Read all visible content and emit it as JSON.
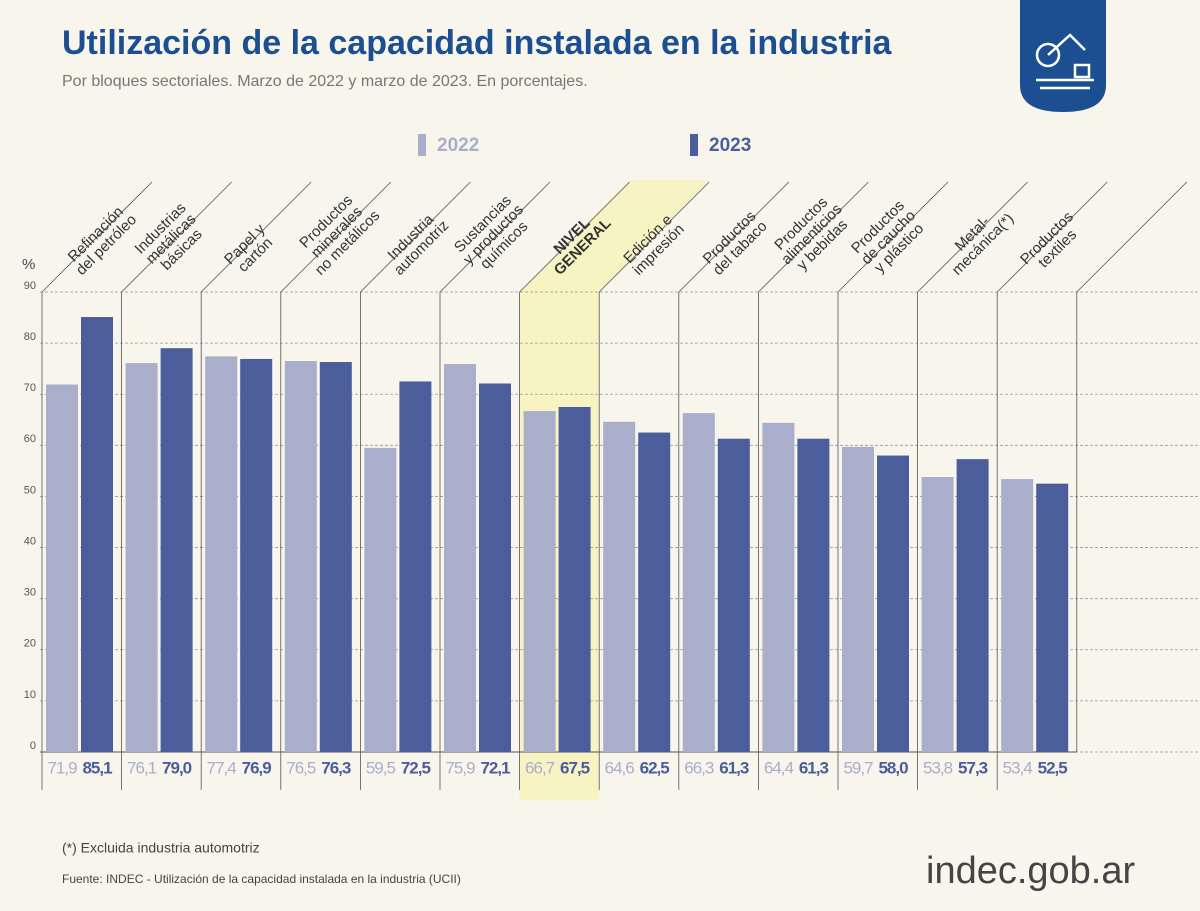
{
  "chart_data": {
    "type": "bar",
    "title": "Utilización de la capacidad instalada en la industria",
    "subtitle": "Por bloques sectoriales. Marzo de 2022 y marzo de 2023. En porcentajes.",
    "y_label": "%",
    "categories": [
      "Refinación\ndel petróleo",
      "Industrias\nmetálicas\nbásicas",
      "Papel y\ncartón",
      "Productos\nminerales\nno metálicos",
      "Industria\nautomotriz",
      "Sustancias\ny productos\nquímicos",
      "NIVEL\nGENERAL",
      "Edición e\nimpresión",
      "Productos\ndel tabaco",
      "Productos\nalimenticios\ny bebidas",
      "Productos\nde caucho\ny plástico",
      "Metal-\nmecánica(*)",
      "Productos\ntextiles"
    ],
    "highlight": 6,
    "series": [
      {
        "name": "2022",
        "color": "#a9aecb",
        "values": [
          71.9,
          76.1,
          77.4,
          76.5,
          59.5,
          75.9,
          66.7,
          64.6,
          66.3,
          64.4,
          59.7,
          53.8,
          53.4
        ],
        "value_labels": [
          "71,9",
          "76,1",
          "77,4",
          "76,5",
          "59,5",
          "75,9",
          "66,7",
          "64,6",
          "66,3",
          "64,4",
          "59,7",
          "53,8",
          "53,4"
        ]
      },
      {
        "name": "2023",
        "color": "#4b5d9a",
        "values": [
          85.1,
          79.0,
          76.9,
          76.3,
          72.5,
          72.1,
          67.5,
          62.5,
          61.3,
          61.3,
          58.0,
          57.3,
          52.5
        ],
        "value_labels": [
          "85,1",
          "79,0",
          "76,9",
          "76,3",
          "72,5",
          "72,1",
          "67,5",
          "62,5",
          "61,3",
          "61,3",
          "58,0",
          "57,3",
          "52,5"
        ]
      }
    ],
    "ylim": [
      0,
      90
    ],
    "yticks": [
      0,
      10,
      20,
      30,
      40,
      50,
      60,
      70,
      80,
      90
    ],
    "grid": true,
    "footnote": "(*) Excluida industria automotriz",
    "source": "Fuente: INDEC - Utilización de la capacidad instalada en la industria (UCII)",
    "logo": "indec.gob.ar"
  }
}
